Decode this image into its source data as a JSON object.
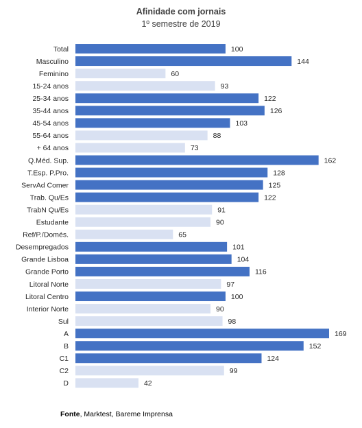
{
  "chart_data": {
    "type": "bar",
    "orientation": "horizontal",
    "title": "Afinidade com jornais",
    "subtitle": "1º semestre de 2019",
    "categories": [
      "Total",
      "Masculino",
      "Feminino",
      "15-24 anos",
      "25-34 anos",
      "35-44 anos",
      "45-54 anos",
      "55-64 anos",
      "+ 64  anos",
      "Q.Méd. Sup.",
      "T.Esp. P.Pro.",
      "ServAd Comer",
      "Trab. Qu/Es",
      "TrabN Qu/Es",
      "Estudante",
      "Ref/P./Domés.",
      "Desempregados",
      "Grande Lisboa",
      "Grande Porto",
      "Litoral Norte",
      "Litoral Centro",
      "Interior Norte",
      "Sul",
      "A",
      "B",
      "C1",
      "C2",
      "D"
    ],
    "values": [
      100,
      144,
      60,
      93,
      122,
      126,
      103,
      88,
      73,
      162,
      128,
      125,
      122,
      91,
      90,
      65,
      101,
      104,
      116,
      97,
      100,
      90,
      98,
      169,
      152,
      124,
      99,
      42
    ],
    "xlim": [
      0,
      169
    ],
    "grid": false,
    "legend": "none",
    "colors": {
      "above": "#4472C4",
      "below": "#D9E1F2"
    }
  },
  "source": {
    "label": "Fonte",
    "text": ", Marktest, Bareme Imprensa"
  }
}
